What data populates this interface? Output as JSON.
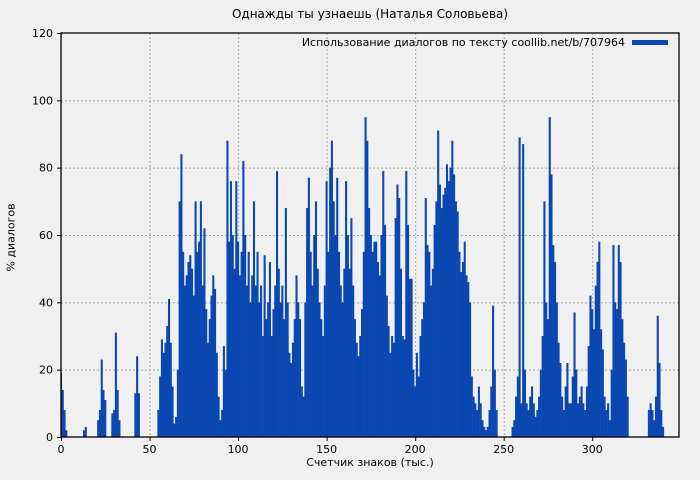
{
  "title": "Однажды ты узнаешь (Наталья Соловьева)",
  "legend": {
    "label": "Использование диалогов по тексту coollib.net/b/707964",
    "swatch_color": "#0a47b1"
  },
  "axes": {
    "y_label": "% диалогов",
    "x_label": "Счетчик знаков (тыс.)",
    "y_ticks": [
      0,
      20,
      40,
      60,
      80,
      100,
      120
    ],
    "x_ticks": [
      0,
      50,
      100,
      150,
      200,
      250,
      300
    ]
  },
  "colors": {
    "background": "#f0f0f0",
    "plot_background": "#f0f0f0",
    "bar": "#0a47b1",
    "grid": "#a8a8a8",
    "border": "#000000",
    "text": "#000000"
  },
  "chart_data": {
    "type": "bar",
    "title": "Однажды ты узнаешь (Наталья Соловьева)",
    "xlabel": "Счетчик знаков (тыс.)",
    "ylabel": "% диалогов",
    "xlim": [
      0,
      349
    ],
    "ylim": [
      0,
      120
    ],
    "grid": true,
    "legend_position": "top-right",
    "x_start": 0,
    "x_step": 1,
    "series": [
      {
        "name": "Использование диалогов по тексту coollib.net/b/707964",
        "color": "#0a47b1",
        "values": [
          19,
          14,
          8,
          2,
          0,
          0,
          0,
          0,
          0,
          0,
          0,
          0,
          0,
          2,
          3,
          0,
          0,
          0,
          0,
          0,
          0,
          5,
          8,
          23,
          14,
          11,
          0,
          0,
          0,
          7,
          8,
          31,
          14,
          5,
          0,
          0,
          0,
          0,
          0,
          0,
          0,
          0,
          13,
          24,
          13,
          0,
          0,
          0,
          0,
          0,
          0,
          0,
          0,
          0,
          0,
          8,
          18,
          29,
          25,
          28,
          33,
          41,
          28,
          15,
          4,
          6,
          20,
          70,
          84,
          55,
          45,
          48,
          52,
          54,
          50,
          42,
          70,
          55,
          58,
          70,
          45,
          62,
          38,
          28,
          35,
          42,
          48,
          44,
          25,
          12,
          5,
          8,
          27,
          20,
          88,
          58,
          76,
          60,
          50,
          76,
          58,
          48,
          55,
          82,
          60,
          45,
          55,
          40,
          48,
          70,
          45,
          55,
          40,
          45,
          30,
          54,
          35,
          40,
          52,
          30,
          38,
          45,
          79,
          50,
          40,
          45,
          35,
          68,
          40,
          25,
          22,
          28,
          35,
          48,
          40,
          35,
          15,
          12,
          40,
          68,
          77,
          55,
          45,
          60,
          70,
          50,
          40,
          35,
          30,
          45,
          76,
          55,
          80,
          88,
          70,
          60,
          77,
          55,
          45,
          40,
          50,
          76,
          60,
          50,
          65,
          45,
          35,
          28,
          24,
          30,
          38,
          55,
          95,
          88,
          68,
          60,
          55,
          58,
          58,
          52,
          48,
          60,
          79,
          63,
          42,
          33,
          25,
          30,
          28,
          65,
          75,
          71,
          50,
          30,
          29,
          79,
          63,
          47,
          47,
          20,
          15,
          25,
          18,
          30,
          35,
          40,
          71,
          57,
          55,
          45,
          50,
          63,
          70,
          91,
          75,
          68,
          72,
          74,
          81,
          76,
          80,
          88,
          78,
          70,
          67,
          55,
          49,
          52,
          58,
          48,
          46,
          40,
          18,
          12,
          10,
          8,
          15,
          10,
          5,
          3,
          2,
          3,
          8,
          15,
          39,
          20,
          8,
          0,
          0,
          0,
          0,
          0,
          0,
          0,
          0,
          3,
          5,
          12,
          18,
          89,
          10,
          87,
          20,
          10,
          8,
          12,
          15,
          10,
          6,
          8,
          12,
          20,
          30,
          70,
          40,
          35,
          95,
          78,
          57,
          52,
          40,
          28,
          22,
          12,
          8,
          15,
          22,
          10,
          10,
          18,
          37,
          20,
          10,
          12,
          15,
          10,
          8,
          15,
          27,
          42,
          38,
          32,
          45,
          52,
          58,
          32,
          26,
          12,
          8,
          10,
          5,
          20,
          57,
          40,
          38,
          57,
          52,
          35,
          28,
          23,
          12,
          0,
          0,
          0,
          0,
          0,
          0,
          0,
          0,
          0,
          0,
          0,
          8,
          10,
          8,
          5,
          12,
          36,
          22,
          8,
          3,
          0,
          0,
          0,
          0,
          0,
          0,
          0,
          0
        ]
      }
    ]
  }
}
